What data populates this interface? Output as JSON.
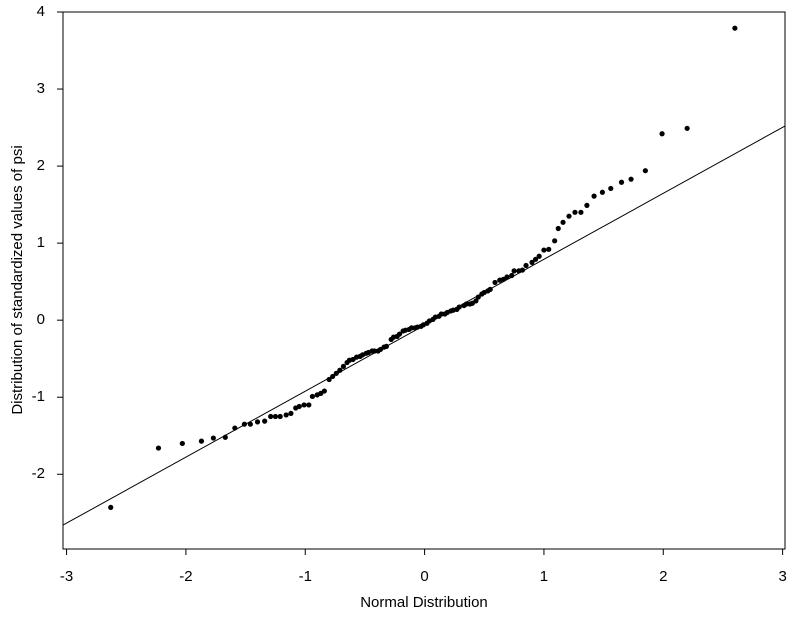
{
  "chart_data": {
    "type": "scatter",
    "xlabel": "Normal Distribution",
    "ylabel": "Distribution of standardized values of psi",
    "xlim": [
      -3.03,
      3.02
    ],
    "ylim": [
      -2.97,
      4
    ],
    "xticks": [
      -3,
      -2,
      -1,
      0,
      1,
      2,
      3
    ],
    "yticks": [
      -2,
      -1,
      0,
      1,
      2,
      3,
      4
    ],
    "color": "#000000",
    "reference_line": {
      "x": [
        -3.03,
        3.02
      ],
      "y": [
        -2.66,
        2.52
      ]
    },
    "x": [
      -2.63,
      -2.23,
      -2.03,
      -1.87,
      -1.77,
      -1.67,
      -1.59,
      -1.51,
      -1.46,
      -1.4,
      -1.34,
      -1.29,
      -1.25,
      -1.21,
      -1.16,
      -1.12,
      -1.08,
      -1.05,
      -1.01,
      -0.97,
      -0.94,
      -0.9,
      -0.87,
      -0.84,
      -0.8,
      -0.77,
      -0.74,
      -0.71,
      -0.68,
      -0.65,
      -0.63,
      -0.6,
      -0.57,
      -0.54,
      -0.52,
      -0.49,
      -0.47,
      -0.44,
      -0.42,
      -0.39,
      -0.37,
      -0.34,
      -0.32,
      -0.28,
      -0.26,
      -0.23,
      -0.21,
      -0.18,
      -0.16,
      -0.13,
      -0.11,
      -0.08,
      -0.06,
      -0.03,
      -0.01,
      0.02,
      0.04,
      0.07,
      0.09,
      0.12,
      0.14,
      0.17,
      0.19,
      0.22,
      0.24,
      0.27,
      0.29,
      0.33,
      0.35,
      0.38,
      0.4,
      0.43,
      0.45,
      0.48,
      0.5,
      0.53,
      0.55,
      0.59,
      0.63,
      0.66,
      0.69,
      0.73,
      0.75,
      0.79,
      0.82,
      0.85,
      0.9,
      0.93,
      0.96,
      1.0,
      1.04,
      1.09,
      1.12,
      1.16,
      1.21,
      1.26,
      1.31,
      1.36,
      1.42,
      1.49,
      1.56,
      1.65,
      1.73,
      1.85,
      1.99,
      2.2,
      2.6
    ],
    "y": [
      -2.43,
      -1.66,
      -1.6,
      -1.57,
      -1.53,
      -1.52,
      -1.4,
      -1.35,
      -1.35,
      -1.32,
      -1.31,
      -1.25,
      -1.25,
      -1.25,
      -1.23,
      -1.21,
      -1.14,
      -1.12,
      -1.1,
      -1.1,
      -0.99,
      -0.97,
      -0.95,
      -0.92,
      -0.77,
      -0.73,
      -0.69,
      -0.65,
      -0.6,
      -0.55,
      -0.52,
      -0.51,
      -0.48,
      -0.47,
      -0.45,
      -0.43,
      -0.42,
      -0.4,
      -0.4,
      -0.4,
      -0.38,
      -0.35,
      -0.34,
      -0.25,
      -0.22,
      -0.21,
      -0.18,
      -0.14,
      -0.13,
      -0.12,
      -0.1,
      -0.1,
      -0.09,
      -0.08,
      -0.06,
      -0.04,
      -0.01,
      0.01,
      0.04,
      0.05,
      0.08,
      0.08,
      0.1,
      0.12,
      0.13,
      0.14,
      0.17,
      0.19,
      0.21,
      0.21,
      0.22,
      0.25,
      0.3,
      0.34,
      0.36,
      0.38,
      0.4,
      0.49,
      0.52,
      0.53,
      0.56,
      0.58,
      0.64,
      0.64,
      0.65,
      0.71,
      0.75,
      0.79,
      0.83,
      0.91,
      0.92,
      1.03,
      1.19,
      1.27,
      1.35,
      1.4,
      1.4,
      1.49,
      1.61,
      1.66,
      1.71,
      1.79,
      1.83,
      1.94,
      2.42,
      2.49,
      3.79
    ]
  }
}
